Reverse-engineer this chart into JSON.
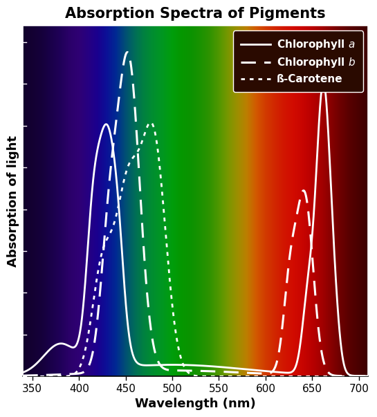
{
  "title": "Absorption Spectra of Pigments",
  "xlabel": "Wavelength (nm)",
  "ylabel": "Absorption of light",
  "xlim": [
    340,
    710
  ],
  "ylim": [
    0,
    1.05
  ],
  "xticks": [
    350,
    400,
    450,
    500,
    550,
    600,
    650,
    700
  ],
  "title_fontsize": 15,
  "axis_label_fontsize": 13,
  "line_width": 2.0,
  "legend_facecolor": "#2a0a00",
  "legend_edgecolor": "#ffffff",
  "figsize": [
    5.45,
    6.03
  ],
  "dpi": 100,
  "spectrum_keypoints": [
    [
      340,
      0.08,
      0.0,
      0.2
    ],
    [
      360,
      0.1,
      0.0,
      0.28
    ],
    [
      370,
      0.12,
      0.0,
      0.35
    ],
    [
      380,
      0.15,
      0.0,
      0.42
    ],
    [
      390,
      0.2,
      0.0,
      0.5
    ],
    [
      400,
      0.22,
      0.0,
      0.55
    ],
    [
      410,
      0.18,
      0.0,
      0.62
    ],
    [
      420,
      0.12,
      0.0,
      0.68
    ],
    [
      430,
      0.05,
      0.08,
      0.72
    ],
    [
      440,
      0.0,
      0.2,
      0.7
    ],
    [
      450,
      0.0,
      0.38,
      0.55
    ],
    [
      460,
      0.0,
      0.52,
      0.42
    ],
    [
      470,
      0.0,
      0.62,
      0.3
    ],
    [
      480,
      0.0,
      0.68,
      0.22
    ],
    [
      490,
      0.0,
      0.72,
      0.15
    ],
    [
      500,
      0.0,
      0.75,
      0.05
    ],
    [
      510,
      0.02,
      0.72,
      0.0
    ],
    [
      520,
      0.05,
      0.7,
      0.0
    ],
    [
      530,
      0.12,
      0.7,
      0.0
    ],
    [
      540,
      0.22,
      0.7,
      0.0
    ],
    [
      550,
      0.38,
      0.72,
      0.0
    ],
    [
      560,
      0.58,
      0.72,
      0.0
    ],
    [
      570,
      0.75,
      0.68,
      0.0
    ],
    [
      580,
      0.9,
      0.6,
      0.0
    ],
    [
      590,
      1.0,
      0.42,
      0.0
    ],
    [
      600,
      1.0,
      0.28,
      0.0
    ],
    [
      610,
      1.0,
      0.18,
      0.0
    ],
    [
      620,
      1.0,
      0.1,
      0.0
    ],
    [
      630,
      1.0,
      0.05,
      0.0
    ],
    [
      640,
      0.95,
      0.02,
      0.0
    ],
    [
      650,
      0.88,
      0.0,
      0.0
    ],
    [
      660,
      0.78,
      0.0,
      0.0
    ],
    [
      670,
      0.65,
      0.0,
      0.0
    ],
    [
      680,
      0.52,
      0.0,
      0.0
    ],
    [
      690,
      0.42,
      0.0,
      0.0
    ],
    [
      700,
      0.35,
      0.0,
      0.0
    ],
    [
      710,
      0.28,
      0.0,
      0.0
    ]
  ]
}
